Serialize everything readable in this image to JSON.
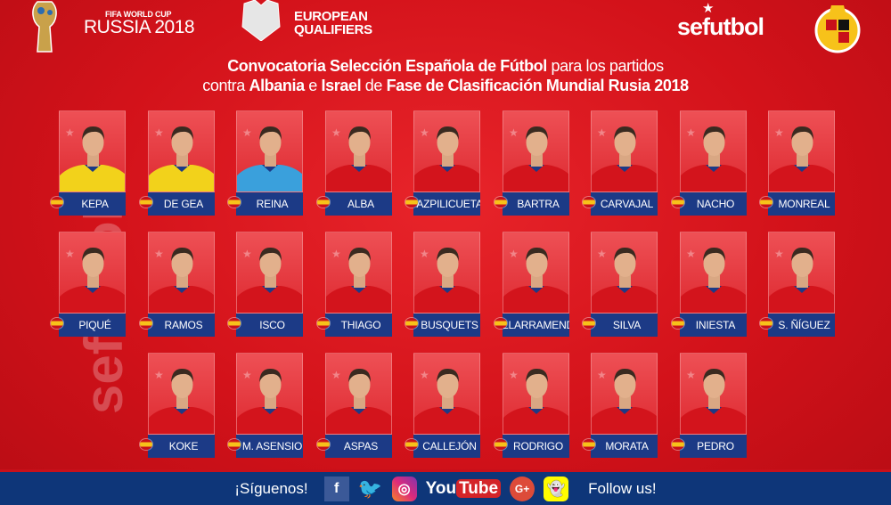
{
  "header": {
    "wc_small": "FIFA WORLD CUP",
    "wc_big": "RUSSIA 2018",
    "eq_line1": "EUROPEAN",
    "eq_line2": "QUALIFIERS",
    "sefutbol": "sefutbol",
    "title_line1": {
      "a": "Convocatoria Selección Española de Fútbol",
      "b": " para los partidos"
    },
    "title_line2": {
      "a": "contra ",
      "b": "Albania",
      "c": " e ",
      "d": "Israel",
      "e": " de ",
      "f": "Fase de Clasificación Mundial Rusia 2018"
    }
  },
  "colors": {
    "background": "#d3121a",
    "name_bar": "#1c3a86",
    "footer": "#0e3679"
  },
  "players": [
    [
      {
        "name": "KEPA",
        "kit": "yellow"
      },
      {
        "name": "DE GEA",
        "kit": "yellow"
      },
      {
        "name": "REINA",
        "kit": "lightblue"
      },
      {
        "name": "ALBA",
        "kit": "red"
      },
      {
        "name": "AZPILICUETA",
        "kit": "red"
      },
      {
        "name": "BARTRA",
        "kit": "red"
      },
      {
        "name": "CARVAJAL",
        "kit": "red"
      },
      {
        "name": "NACHO",
        "kit": "red"
      },
      {
        "name": "MONREAL",
        "kit": "red"
      }
    ],
    [
      {
        "name": "PIQUÉ",
        "kit": "red"
      },
      {
        "name": "RAMOS",
        "kit": "red"
      },
      {
        "name": "ISCO",
        "kit": "red"
      },
      {
        "name": "THIAGO",
        "kit": "red"
      },
      {
        "name": "BUSQUETS",
        "kit": "red"
      },
      {
        "name": "ILLARRAMENDI",
        "kit": "red"
      },
      {
        "name": "SILVA",
        "kit": "red"
      },
      {
        "name": "INIESTA",
        "kit": "red"
      },
      {
        "name": "S. ÑÍGUEZ",
        "kit": "red"
      }
    ],
    [
      {
        "name": "KOKE",
        "kit": "red"
      },
      {
        "name": "M. ASENSIO",
        "kit": "red"
      },
      {
        "name": "ASPAS",
        "kit": "red"
      },
      {
        "name": "CALLEJÓN",
        "kit": "red"
      },
      {
        "name": "RODRIGO",
        "kit": "red"
      },
      {
        "name": "MORATA",
        "kit": "red"
      },
      {
        "name": "PEDRO",
        "kit": "red"
      }
    ]
  ],
  "footer": {
    "left": "¡Síguenos!",
    "right": "Follow us!",
    "icons": [
      "facebook-icon",
      "twitter-icon",
      "instagram-icon",
      "youtube-icon",
      "google-plus-icon",
      "snapchat-icon"
    ],
    "youtube_you": "You",
    "youtube_tube": "Tube",
    "gplus": "G+"
  }
}
